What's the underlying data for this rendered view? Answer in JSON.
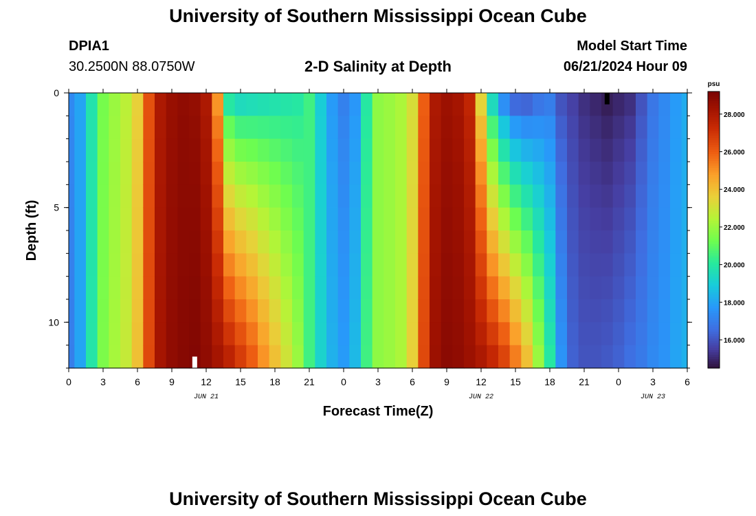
{
  "header": {
    "title": "University of Southern Mississippi Ocean Cube",
    "station_id": "DPIA1",
    "coordinates": "30.2500N  88.0750W",
    "chart_title": "2-D Salinity at Depth",
    "model_start_label": "Model Start Time",
    "model_start_value": "06/21/2024 Hour 09"
  },
  "footer": {
    "title": "University of Southern Mississippi Ocean Cube"
  },
  "chart_data": {
    "type": "heatmap",
    "title": "2-D Salinity at Depth",
    "xlabel": "Forecast Time(Z)",
    "ylabel": "Depth (ft)",
    "x_hours": [
      0,
      54
    ],
    "y_range": [
      0,
      12
    ],
    "x_ticks": [
      {
        "h": 0,
        "label": "0"
      },
      {
        "h": 3,
        "label": "3"
      },
      {
        "h": 6,
        "label": "6"
      },
      {
        "h": 9,
        "label": "9"
      },
      {
        "h": 12,
        "label": "12"
      },
      {
        "h": 15,
        "label": "15"
      },
      {
        "h": 18,
        "label": "18"
      },
      {
        "h": 21,
        "label": "21"
      },
      {
        "h": 24,
        "label": "0"
      },
      {
        "h": 27,
        "label": "3"
      },
      {
        "h": 30,
        "label": "6"
      },
      {
        "h": 33,
        "label": "9"
      },
      {
        "h": 36,
        "label": "12"
      },
      {
        "h": 39,
        "label": "15"
      },
      {
        "h": 42,
        "label": "18"
      },
      {
        "h": 45,
        "label": "21"
      },
      {
        "h": 48,
        "label": "0"
      },
      {
        "h": 51,
        "label": "3"
      },
      {
        "h": 54,
        "label": "6"
      }
    ],
    "y_ticks": [
      {
        "v": 0,
        "label": "0"
      },
      {
        "v": 5,
        "label": "5"
      },
      {
        "v": 10,
        "label": "10"
      }
    ],
    "date_labels": [
      {
        "h": 12,
        "label": "JUN 21"
      },
      {
        "h": 36,
        "label": "JUN 22"
      },
      {
        "h": 51,
        "label": "JUN 23"
      }
    ],
    "colorbar": {
      "unit": "psu",
      "min": 14.5,
      "max": 29.2,
      "ticks": [
        {
          "v": 16,
          "label": "16.000"
        },
        {
          "v": 18,
          "label": "18.000"
        },
        {
          "v": 20,
          "label": "20.000"
        },
        {
          "v": 22,
          "label": "22.000"
        },
        {
          "v": 24,
          "label": "24.000"
        },
        {
          "v": 26,
          "label": "26.000"
        },
        {
          "v": 28,
          "label": "28.000"
        }
      ]
    },
    "surface_salinity_by_hour": [
      17.3,
      18.0,
      19.8,
      21.4,
      22.0,
      22.6,
      23.6,
      26.3,
      28.0,
      28.5,
      28.7,
      28.6,
      28.0,
      25.0,
      20.0,
      19.5,
      19.6,
      19.7,
      19.8,
      19.9,
      20.0,
      20.5,
      19.0,
      17.8,
      17.1,
      17.7,
      20.0,
      21.8,
      22.0,
      22.3,
      23.2,
      26.0,
      28.0,
      28.4,
      28.2,
      27.5,
      23.5,
      19.5,
      17.5,
      16.5,
      16.4,
      16.8,
      17.0,
      16.0,
      15.6,
      15.2,
      15.0,
      14.8,
      15.0,
      15.2,
      16.0,
      16.8,
      17.3,
      17.8,
      18.2
    ],
    "bottom_salinity_by_hour": [
      17.0,
      18.0,
      19.9,
      21.5,
      22.2,
      22.8,
      24.0,
      26.5,
      28.2,
      28.7,
      28.9,
      29.0,
      28.7,
      28.2,
      27.6,
      26.8,
      26.0,
      25.0,
      24.0,
      23.0,
      22.0,
      20.5,
      19.2,
      18.3,
      17.8,
      18.5,
      20.5,
      21.8,
      22.0,
      22.3,
      23.6,
      26.5,
      28.4,
      28.8,
      28.7,
      28.4,
      28.0,
      27.4,
      26.6,
      25.4,
      24.0,
      22.0,
      20.0,
      17.6,
      16.3,
      16.0,
      16.0,
      16.1,
      16.3,
      16.6,
      16.9,
      17.3,
      17.6,
      18.0,
      18.3
    ],
    "markers": [
      {
        "h": 11,
        "depth_from": 11.5,
        "depth_to": 12,
        "color": "#ffffff"
      },
      {
        "h": 47,
        "depth_from": 0,
        "depth_to": 0.5,
        "color": "#000000"
      }
    ]
  }
}
